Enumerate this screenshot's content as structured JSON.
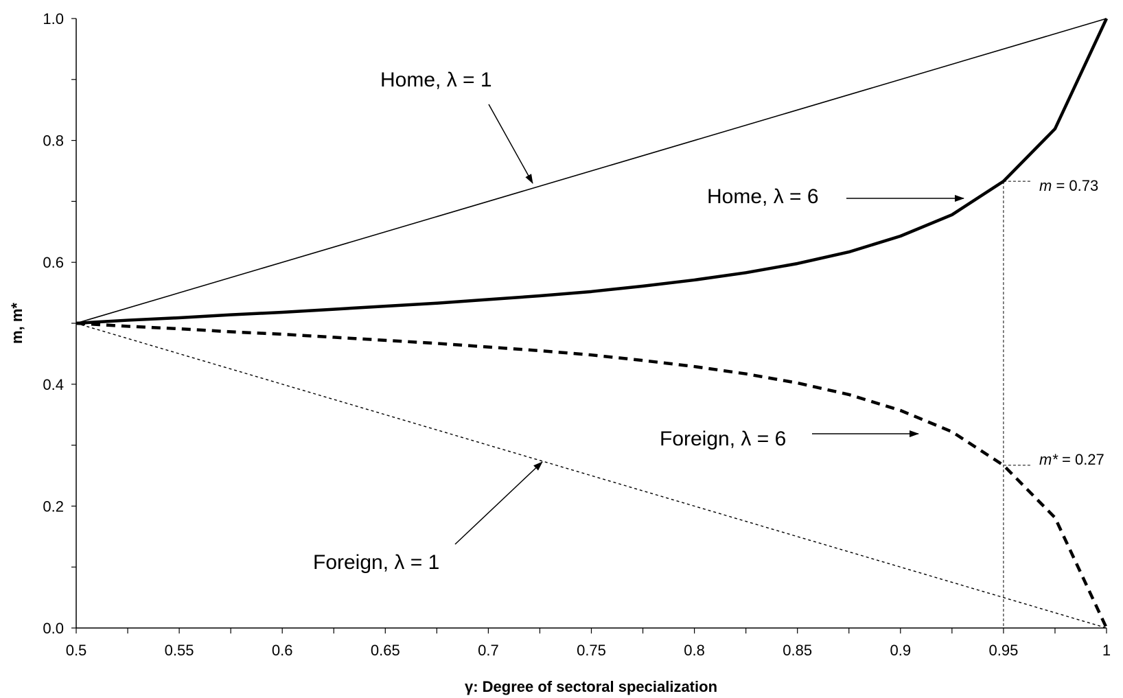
{
  "chart_data": {
    "type": "line",
    "title": "",
    "xlabel": "γ: Degree of sectoral specialization",
    "ylabel": "m, m*",
    "xlim": [
      0.5,
      1
    ],
    "ylim": [
      0,
      1
    ],
    "grid": false,
    "x_tick_labels": [
      "0.5",
      "0.55",
      "0.6",
      "0.65",
      "0.7",
      "0.75",
      "0.8",
      "0.85",
      "0.9",
      "0.95",
      "1"
    ],
    "y_tick_labels": [
      "0.0",
      "0.2",
      "0.4",
      "0.6",
      "0.8",
      "1.0"
    ],
    "series": [
      {
        "key": "home_l1",
        "style": "thin-solid",
        "x": [
          0.5,
          1.0
        ],
        "values": [
          0.5,
          1.0
        ]
      },
      {
        "key": "home_l6",
        "style": "thick-solid",
        "x": [
          0.5,
          0.525,
          0.55,
          0.575,
          0.6,
          0.625,
          0.65,
          0.675,
          0.7,
          0.725,
          0.75,
          0.775,
          0.8,
          0.825,
          0.85,
          0.875,
          0.9,
          0.925,
          0.95,
          0.975,
          1.0
        ],
        "values": [
          0.5,
          0.505,
          0.509,
          0.514,
          0.518,
          0.523,
          0.528,
          0.533,
          0.539,
          0.545,
          0.552,
          0.561,
          0.571,
          0.583,
          0.598,
          0.617,
          0.643,
          0.678,
          0.733,
          0.819,
          1.0
        ]
      },
      {
        "key": "foreign_l6",
        "style": "thick-dashed",
        "x": [
          0.5,
          0.525,
          0.55,
          0.575,
          0.6,
          0.625,
          0.65,
          0.675,
          0.7,
          0.725,
          0.75,
          0.775,
          0.8,
          0.825,
          0.85,
          0.875,
          0.9,
          0.925,
          0.95,
          0.975,
          1.0
        ],
        "values": [
          0.5,
          0.495,
          0.491,
          0.486,
          0.482,
          0.477,
          0.472,
          0.467,
          0.461,
          0.455,
          0.448,
          0.439,
          0.429,
          0.417,
          0.402,
          0.383,
          0.357,
          0.322,
          0.267,
          0.181,
          0.0
        ]
      },
      {
        "key": "foreign_l1",
        "style": "thin-dotted",
        "x": [
          0.5,
          1.0
        ],
        "values": [
          0.5,
          0.0
        ]
      }
    ],
    "annotations": {
      "home_l1_text": "Home, λ = 1",
      "home_l6_text": "Home, λ = 6",
      "foreign_l6_text": "Foreign, λ = 6",
      "foreign_l1_text": "Foreign, λ = 1",
      "m_var": "m",
      "m_value": " = 0.73",
      "mstar_var": "m*",
      "mstar_value": " = 0.27",
      "marker_x": 0.95
    }
  }
}
